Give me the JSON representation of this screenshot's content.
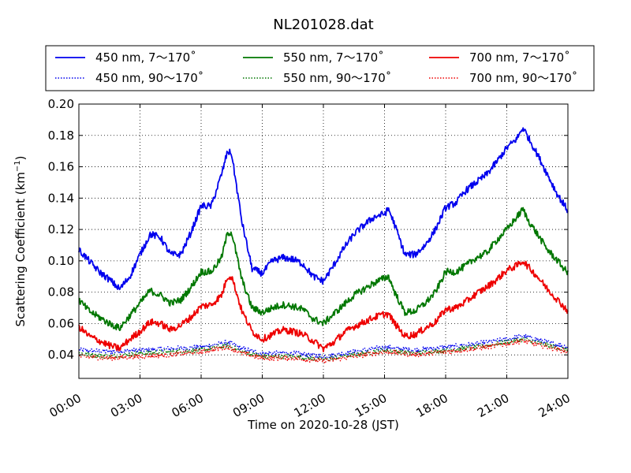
{
  "chart_data": {
    "type": "line",
    "title": "NL201028.dat",
    "xlabel": "Time on 2020-10-28 (JST)",
    "ylabel": "Scattering Coefficient (km",
    "ylabel_sup": "−1",
    "ylabel_close": ")",
    "xlim": [
      0,
      24
    ],
    "ylim": [
      0.025,
      0.2
    ],
    "xticks": [
      0,
      3,
      6,
      9,
      12,
      15,
      18,
      21,
      24
    ],
    "xtick_labels": [
      "00:00",
      "03:00",
      "06:00",
      "09:00",
      "12:00",
      "15:00",
      "18:00",
      "21:00",
      "24:00"
    ],
    "yticks": [
      0.04,
      0.06,
      0.08,
      0.1,
      0.12,
      0.14,
      0.16,
      0.18,
      0.2
    ],
    "ytick_labels": [
      "0.04",
      "0.06",
      "0.08",
      "0.10",
      "0.12",
      "0.14",
      "0.16",
      "0.18",
      "0.20"
    ],
    "grid": true,
    "legend_placement": "top, above plot",
    "series": [
      {
        "name": "450 nm, 7～170˚",
        "color": "#0000ee",
        "style": "solid",
        "x": [
          0,
          0.5,
          1,
          1.5,
          2,
          2.5,
          3,
          3.5,
          4,
          4.5,
          5,
          5.5,
          6,
          6.5,
          7,
          7.3,
          7.5,
          8,
          8.5,
          9,
          9.5,
          10,
          10.5,
          11,
          11.5,
          12,
          12.5,
          13,
          13.5,
          14,
          14.5,
          15,
          15.2,
          15.5,
          16,
          16.5,
          17,
          17.5,
          18,
          18.5,
          19,
          19.5,
          20,
          20.5,
          21,
          21.5,
          21.8,
          22,
          22.5,
          23,
          23.5,
          24
        ],
        "y": [
          0.107,
          0.1,
          0.093,
          0.088,
          0.082,
          0.09,
          0.104,
          0.117,
          0.115,
          0.104,
          0.104,
          0.118,
          0.135,
          0.135,
          0.155,
          0.17,
          0.168,
          0.125,
          0.095,
          0.092,
          0.1,
          0.102,
          0.101,
          0.098,
          0.09,
          0.087,
          0.097,
          0.108,
          0.117,
          0.123,
          0.128,
          0.13,
          0.133,
          0.123,
          0.104,
          0.104,
          0.11,
          0.12,
          0.134,
          0.137,
          0.145,
          0.15,
          0.155,
          0.163,
          0.172,
          0.178,
          0.185,
          0.18,
          0.168,
          0.155,
          0.142,
          0.132
        ]
      },
      {
        "name": "550 nm, 7～170˚",
        "color": "#007700",
        "style": "solid",
        "x": [
          0,
          0.5,
          1,
          1.5,
          2,
          2.5,
          3,
          3.5,
          4,
          4.5,
          5,
          5.5,
          6,
          6.5,
          7,
          7.3,
          7.5,
          8,
          8.5,
          9,
          9.5,
          10,
          10.5,
          11,
          11.5,
          12,
          12.5,
          13,
          13.5,
          14,
          14.5,
          15,
          15.2,
          15.5,
          16,
          16.5,
          17,
          17.5,
          18,
          18.5,
          19,
          19.5,
          20,
          20.5,
          21,
          21.5,
          21.8,
          22,
          22.5,
          23,
          23.5,
          24
        ],
        "y": [
          0.075,
          0.068,
          0.064,
          0.06,
          0.057,
          0.065,
          0.073,
          0.081,
          0.078,
          0.073,
          0.075,
          0.083,
          0.093,
          0.093,
          0.102,
          0.118,
          0.118,
          0.088,
          0.07,
          0.067,
          0.07,
          0.072,
          0.071,
          0.069,
          0.063,
          0.06,
          0.066,
          0.072,
          0.078,
          0.082,
          0.086,
          0.089,
          0.09,
          0.08,
          0.067,
          0.068,
          0.073,
          0.08,
          0.093,
          0.093,
          0.097,
          0.102,
          0.105,
          0.113,
          0.12,
          0.128,
          0.133,
          0.127,
          0.117,
          0.107,
          0.1,
          0.092
        ]
      },
      {
        "name": "700 nm, 7～170˚",
        "color": "#ee0000",
        "style": "solid",
        "x": [
          0,
          0.5,
          1,
          1.5,
          2,
          2.5,
          3,
          3.5,
          4,
          4.5,
          5,
          5.5,
          6,
          6.5,
          7,
          7.3,
          7.5,
          8,
          8.5,
          9,
          9.5,
          10,
          10.5,
          11,
          11.5,
          12,
          12.5,
          13,
          13.5,
          14,
          14.5,
          15,
          15.2,
          15.5,
          16,
          16.5,
          17,
          17.5,
          18,
          18.5,
          19,
          19.5,
          20,
          20.5,
          21,
          21.5,
          21.8,
          22,
          22.5,
          23,
          23.5,
          24
        ],
        "y": [
          0.058,
          0.052,
          0.049,
          0.046,
          0.044,
          0.05,
          0.055,
          0.061,
          0.06,
          0.056,
          0.059,
          0.064,
          0.071,
          0.072,
          0.078,
          0.09,
          0.09,
          0.068,
          0.055,
          0.05,
          0.053,
          0.056,
          0.055,
          0.053,
          0.049,
          0.044,
          0.048,
          0.054,
          0.058,
          0.061,
          0.064,
          0.066,
          0.066,
          0.06,
          0.052,
          0.053,
          0.057,
          0.061,
          0.069,
          0.07,
          0.074,
          0.079,
          0.083,
          0.088,
          0.094,
          0.097,
          0.1,
          0.097,
          0.09,
          0.082,
          0.075,
          0.068
        ]
      },
      {
        "name": "450 nm, 90～170˚",
        "color": "#0000ee",
        "style": "dotted",
        "x": [
          0,
          1.5,
          3,
          4.5,
          6,
          7.3,
          8,
          9,
          10.5,
          12,
          13.5,
          15,
          16.5,
          18,
          19.5,
          21,
          21.8,
          23,
          24
        ],
        "y": [
          0.043,
          0.042,
          0.043,
          0.044,
          0.045,
          0.048,
          0.044,
          0.041,
          0.041,
          0.039,
          0.042,
          0.045,
          0.043,
          0.045,
          0.047,
          0.05,
          0.052,
          0.048,
          0.045
        ]
      },
      {
        "name": "550 nm, 90～170˚",
        "color": "#007700",
        "style": "dotted",
        "x": [
          0,
          1.5,
          3,
          4.5,
          6,
          7.3,
          8,
          9,
          10.5,
          12,
          13.5,
          15,
          16.5,
          18,
          19.5,
          21,
          21.8,
          23,
          24
        ],
        "y": [
          0.041,
          0.039,
          0.041,
          0.042,
          0.043,
          0.046,
          0.042,
          0.039,
          0.039,
          0.037,
          0.04,
          0.043,
          0.041,
          0.043,
          0.045,
          0.048,
          0.05,
          0.046,
          0.043
        ]
      },
      {
        "name": "700 nm, 90～170˚",
        "color": "#ee0000",
        "style": "dotted",
        "x": [
          0,
          1.5,
          3,
          4.5,
          6,
          7.3,
          8,
          9,
          10.5,
          12,
          13.5,
          15,
          16.5,
          18,
          19.5,
          21,
          21.8,
          23,
          24
        ],
        "y": [
          0.039,
          0.038,
          0.039,
          0.04,
          0.042,
          0.045,
          0.041,
          0.038,
          0.038,
          0.036,
          0.039,
          0.042,
          0.04,
          0.042,
          0.044,
          0.047,
          0.049,
          0.045,
          0.042
        ]
      }
    ]
  }
}
